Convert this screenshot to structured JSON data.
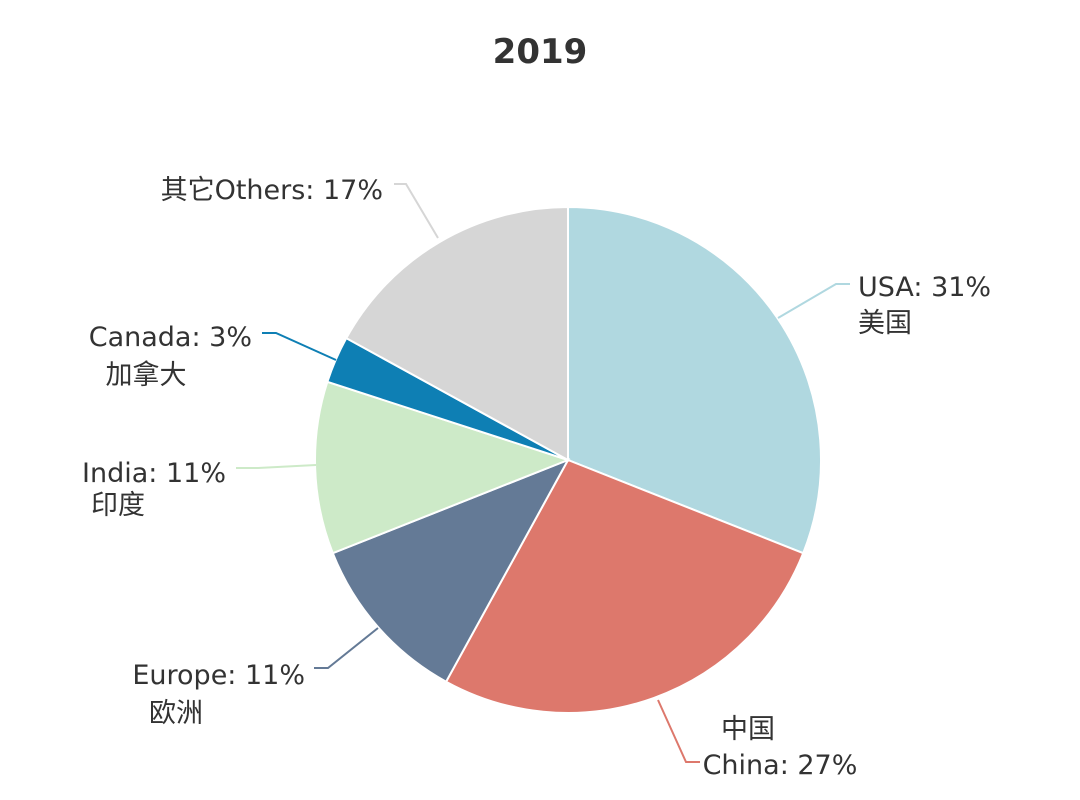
{
  "chart_data": {
    "type": "pie",
    "title": "2019",
    "slices": [
      {
        "name": "USA",
        "pct": 31,
        "label": "USA: 31%",
        "label_cn": "美国",
        "color": "#b0d8e0"
      },
      {
        "name": "China",
        "pct": 27,
        "label": "China: 27%",
        "label_cn": "中国",
        "color": "#dd786c"
      },
      {
        "name": "Europe",
        "pct": 11,
        "label": "Europe: 11%",
        "label_cn": "欧洲",
        "color": "#647a96"
      },
      {
        "name": "India",
        "pct": 11,
        "label": "India: 11%",
        "label_cn": "印度",
        "color": "#cdeac8"
      },
      {
        "name": "Canada",
        "pct": 3,
        "label": "Canada: 3%",
        "label_cn": "加拿大",
        "color": "#0e7fb4"
      },
      {
        "name": "Others",
        "pct": 17,
        "label": "其它Others: 17%",
        "label_cn": "",
        "color": "#d6d6d6"
      }
    ],
    "start_angle_deg": 0,
    "direction": "clockwise"
  }
}
